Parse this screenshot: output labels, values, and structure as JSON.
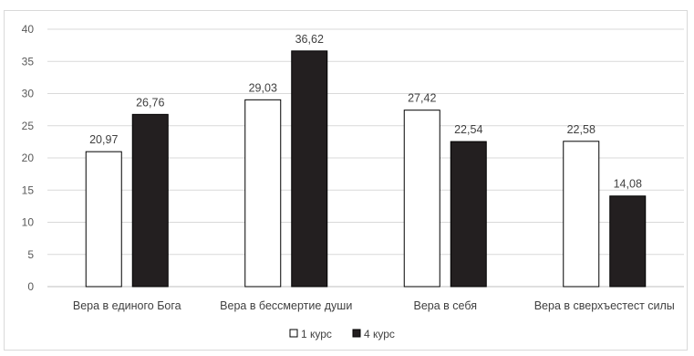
{
  "chart_data": {
    "type": "bar",
    "title": "",
    "xlabel": "",
    "ylabel": "",
    "categories": [
      "Вера в единого Бога",
      "Вера в бессмертие души",
      "Вера в себя",
      "Вера в сверхъестест силы"
    ],
    "series": [
      {
        "name": "1 курс",
        "values": [
          20.97,
          29.03,
          27.42,
          22.58
        ],
        "labels": [
          "20,97",
          "29,03",
          "27,42",
          "22,58"
        ],
        "color": "#ffffff",
        "stroke": "#000000"
      },
      {
        "name": "4 курс",
        "values": [
          26.76,
          36.62,
          22.54,
          14.08
        ],
        "labels": [
          "26,76",
          "36,62",
          "22,54",
          "14,08"
        ],
        "color": "#231f20",
        "stroke": "#000000"
      }
    ],
    "ylim": [
      0,
      40
    ],
    "yticks": [
      0,
      5,
      10,
      15,
      20,
      25,
      30,
      35,
      40
    ],
    "grid": true,
    "legend_position": "bottom"
  }
}
